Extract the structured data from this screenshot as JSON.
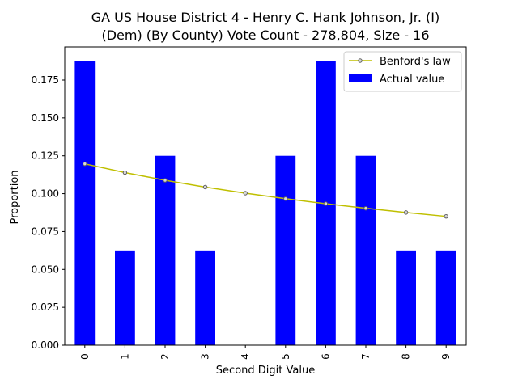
{
  "chart_data": {
    "type": "bar",
    "title_line1": "GA US House District 4 - Henry C. Hank Johnson, Jr. (I)",
    "title_line2": "(Dem) (By County) Vote Count - 278,804, Size - 16",
    "xlabel": "Second Digit Value",
    "ylabel": "Proportion",
    "categories": [
      "0",
      "1",
      "2",
      "3",
      "4",
      "5",
      "6",
      "7",
      "8",
      "9"
    ],
    "ylim": [
      0,
      0.196875
    ],
    "yticks": [
      "0.000",
      "0.025",
      "0.050",
      "0.075",
      "0.100",
      "0.125",
      "0.150",
      "0.175"
    ],
    "grid": false,
    "legend_placement": "top-right",
    "series": [
      {
        "name": "Actual value",
        "kind": "bar",
        "color": "#0000ff",
        "values": [
          0.1875,
          0.0625,
          0.125,
          0.0625,
          0.0,
          0.125,
          0.1875,
          0.125,
          0.0625,
          0.0625
        ]
      },
      {
        "name": "Benford's law",
        "kind": "line",
        "color": "#bfbf00",
        "marker_fill": "#d8d8d8",
        "marker_edge": "#606060",
        "values": [
          0.11968,
          0.11389,
          0.10882,
          0.10433,
          0.10031,
          0.09668,
          0.09337,
          0.09035,
          0.08757,
          0.085
        ]
      }
    ]
  }
}
